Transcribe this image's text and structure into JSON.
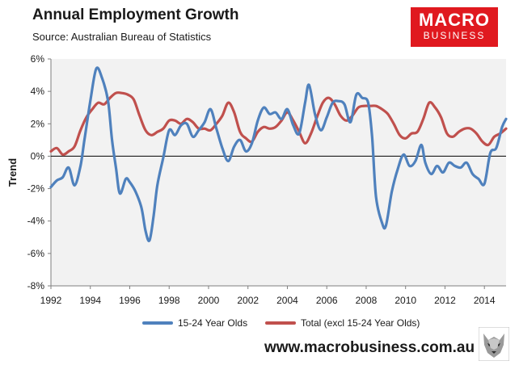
{
  "header": {
    "title": "Annual Employment Growth",
    "subtitle": "Source: Australian Bureau of Statistics"
  },
  "logo": {
    "line1": "MACRO",
    "line2": "BUSINESS",
    "bg_color": "#e0191f"
  },
  "footer": {
    "url": "www.macrobusiness.com.au",
    "mascot_icon": "wolf-icon"
  },
  "chart_data": {
    "type": "line",
    "title": "Annual Employment Growth",
    "ylabel": "Trend",
    "xlabel": "",
    "xlim": [
      1992,
      2015.1
    ],
    "ylim": [
      -8,
      6
    ],
    "y_tick_values": [
      -8,
      -6,
      -4,
      -2,
      0,
      2,
      4,
      6
    ],
    "y_tick_labels": [
      "-8%",
      "-6%",
      "-4%",
      "-2%",
      "0%",
      "2%",
      "4%",
      "6%"
    ],
    "x_tick_values": [
      1992,
      1994,
      1996,
      1998,
      2000,
      2002,
      2004,
      2006,
      2008,
      2010,
      2012,
      2014
    ],
    "x_tick_labels": [
      "1992",
      "1994",
      "1996",
      "1998",
      "2000",
      "2002",
      "2004",
      "2006",
      "2008",
      "2010",
      "2012",
      "2014"
    ],
    "grid": false,
    "plot_background": "#f2f2f2",
    "legend_position": "bottom",
    "series": [
      {
        "name": "15-24 Year Olds",
        "color": "#4f81bd",
        "x": [
          1992,
          1992.3,
          1992.6,
          1992.9,
          1993.2,
          1993.5,
          1993.7,
          1994,
          1994.3,
          1994.6,
          1994.9,
          1995.1,
          1995.3,
          1995.5,
          1995.8,
          1996,
          1996.3,
          1996.6,
          1996.8,
          1997,
          1997.2,
          1997.4,
          1997.7,
          1998,
          1998.3,
          1998.6,
          1998.9,
          1999.2,
          1999.5,
          1999.8,
          2000.1,
          2000.4,
          2000.7,
          2001,
          2001.3,
          2001.6,
          2001.9,
          2002.2,
          2002.5,
          2002.8,
          2003.1,
          2003.4,
          2003.7,
          2004,
          2004.3,
          2004.6,
          2004.9,
          2005.1,
          2005.4,
          2005.7,
          2006,
          2006.3,
          2006.6,
          2006.9,
          2007.2,
          2007.5,
          2007.8,
          2008.1,
          2008.3,
          2008.5,
          2008.8,
          2009,
          2009.3,
          2009.6,
          2009.9,
          2010.2,
          2010.5,
          2010.8,
          2011,
          2011.3,
          2011.6,
          2011.9,
          2012.2,
          2012.5,
          2012.8,
          2013.1,
          2013.4,
          2013.7,
          2014,
          2014.3,
          2014.6,
          2014.9,
          2015.1
        ],
        "values": [
          -1.9,
          -1.5,
          -1.3,
          -0.7,
          -1.8,
          -0.6,
          1.0,
          3.4,
          5.4,
          4.8,
          3.4,
          1.0,
          -0.7,
          -2.3,
          -1.4,
          -1.6,
          -2.2,
          -3.2,
          -4.6,
          -5.2,
          -3.8,
          -1.8,
          -0.1,
          1.6,
          1.3,
          1.9,
          2.0,
          1.2,
          1.6,
          2.1,
          2.9,
          1.7,
          0.5,
          -0.3,
          0.6,
          1.0,
          0.3,
          0.8,
          2.2,
          3.0,
          2.6,
          2.7,
          2.3,
          2.9,
          1.9,
          1.4,
          3.3,
          4.4,
          2.6,
          1.6,
          2.4,
          3.3,
          3.4,
          3.2,
          2.1,
          3.8,
          3.6,
          3.3,
          1.2,
          -2.5,
          -4.1,
          -4.3,
          -2.2,
          -0.8,
          0.1,
          -0.6,
          -0.3,
          0.7,
          -0.4,
          -1.1,
          -0.6,
          -1.0,
          -0.4,
          -0.6,
          -0.7,
          -0.4,
          -1.1,
          -1.4,
          -1.7,
          0.2,
          0.5,
          1.8,
          2.3
        ]
      },
      {
        "name": "Total (excl 15-24 Year Olds)",
        "color": "#c0504d",
        "x": [
          1992,
          1992.3,
          1992.6,
          1992.9,
          1993.2,
          1993.5,
          1993.8,
          1994.1,
          1994.4,
          1994.7,
          1995,
          1995.3,
          1995.6,
          1995.9,
          1996.2,
          1996.5,
          1996.8,
          1997.1,
          1997.4,
          1997.7,
          1998,
          1998.3,
          1998.6,
          1998.9,
          1999.2,
          1999.5,
          1999.8,
          2000.1,
          2000.4,
          2000.7,
          2001,
          2001.3,
          2001.6,
          2001.9,
          2002.2,
          2002.5,
          2002.8,
          2003.1,
          2003.4,
          2003.7,
          2004,
          2004.3,
          2004.6,
          2004.9,
          2005.2,
          2005.5,
          2005.8,
          2006.1,
          2006.4,
          2006.7,
          2007,
          2007.3,
          2007.6,
          2007.9,
          2008.2,
          2008.5,
          2008.8,
          2009.1,
          2009.4,
          2009.7,
          2010,
          2010.3,
          2010.6,
          2010.9,
          2011.2,
          2011.5,
          2011.8,
          2012.1,
          2012.4,
          2012.7,
          2013,
          2013.3,
          2013.6,
          2013.9,
          2014.2,
          2014.5,
          2014.8,
          2015.1
        ],
        "values": [
          0.3,
          0.5,
          0.1,
          0.3,
          0.6,
          1.6,
          2.4,
          2.9,
          3.3,
          3.2,
          3.6,
          3.9,
          3.9,
          3.8,
          3.5,
          2.5,
          1.6,
          1.3,
          1.5,
          1.7,
          2.2,
          2.2,
          2.0,
          2.3,
          2.1,
          1.7,
          1.7,
          1.6,
          2.0,
          2.5,
          3.3,
          2.7,
          1.5,
          1.1,
          0.9,
          1.5,
          1.8,
          1.7,
          1.8,
          2.2,
          2.7,
          2.2,
          1.5,
          0.8,
          1.4,
          2.4,
          3.3,
          3.6,
          3.2,
          2.5,
          2.2,
          2.5,
          3.0,
          3.1,
          3.1,
          3.1,
          2.9,
          2.6,
          2.0,
          1.3,
          1.1,
          1.4,
          1.5,
          2.3,
          3.3,
          3.0,
          2.4,
          1.4,
          1.2,
          1.5,
          1.7,
          1.7,
          1.4,
          0.9,
          0.7,
          1.2,
          1.4,
          1.7
        ]
      }
    ]
  }
}
